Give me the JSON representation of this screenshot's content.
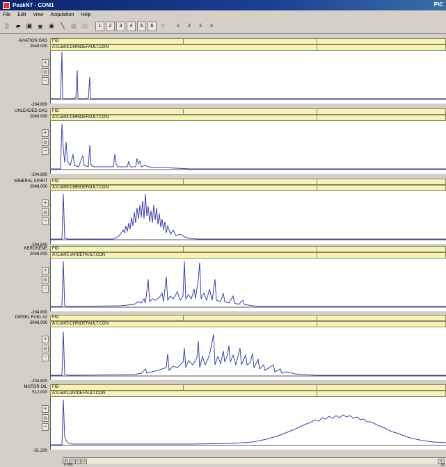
{
  "window": {
    "title": "PeakNT - COM1",
    "title_right": "PIC"
  },
  "menu": [
    "File",
    "Edit",
    "View",
    "Acquisition",
    "Help"
  ],
  "toolbar": {
    "channel_buttons": [
      "1",
      "2",
      "3",
      "4",
      "5",
      "6"
    ],
    "colored_buttons": [
      "1",
      "2",
      "3",
      "4"
    ]
  },
  "panels": [
    {
      "name": "AVIATION GAS",
      "ymax": "2048.000",
      "ymin": "-204.800",
      "detector": "FID",
      "file": "A:\\Lux03.CHR\\DEFAULT.CON"
    },
    {
      "name": "UNLEADED GAS",
      "ymax": "2048.000",
      "ymin": "-204.800",
      "detector": "FID",
      "file": "A:\\Lux04.CHR\\DEFAULT.CON"
    },
    {
      "name": "MINERAL SPIRIT",
      "ymax": "2048.000",
      "ymin": "-204.800",
      "detector": "FID",
      "file": "A:\\Lux06.CHR\\DEFAULT.CON"
    },
    {
      "name": "KEROSENE",
      "ymax": "2048.000",
      "ymin": "-204.800",
      "detector": "FID",
      "file": "A:\\Lux05.chr\\DEFAULT.CON"
    },
    {
      "name": "DIESEL FUEL #2",
      "ymax": "2048.000",
      "ymin": "-204.800",
      "detector": "FID",
      "file": "A:\\Lux05.CHR\\DEFAULT.CON"
    },
    {
      "name": "MOTOR OIL",
      "ymax": "512.000",
      "ymin": "-51.200",
      "detector": "FID",
      "file": "A:\\Lux01.chr\\DEFAULT.CON"
    }
  ],
  "xaxis": {
    "start": "0.000",
    "end": "30"
  },
  "colors": {
    "trace": "#3b3fa8",
    "header_strip": "#f6f3b8",
    "titlebar": "#0a246a"
  }
}
